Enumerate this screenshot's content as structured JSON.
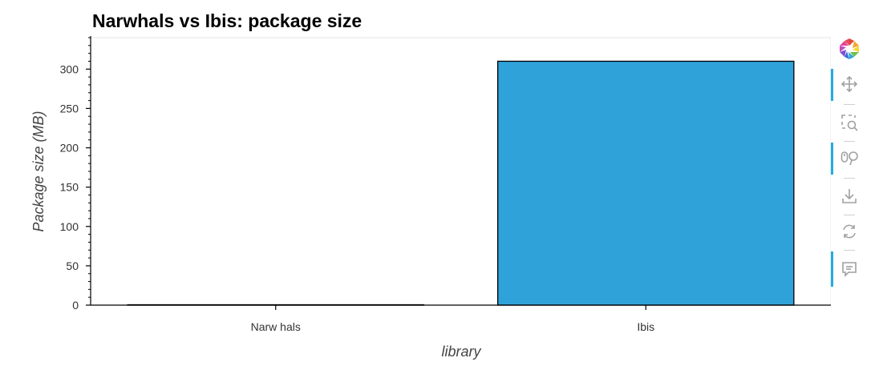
{
  "chart_data": {
    "type": "bar",
    "title": "Narwhals vs Ibis: package size",
    "xlabel": "library",
    "ylabel": "Package size (MB)",
    "categories": [
      "Narw hals",
      "Ibis"
    ],
    "values": [
      0.5,
      310
    ],
    "ylim": [
      0,
      340
    ],
    "yticks": [
      0,
      50,
      100,
      150,
      200,
      250,
      300
    ],
    "bar_color": "#30a2da",
    "bar_edge_color": "#000000",
    "grid": false
  },
  "toolbar": {
    "logo_icon": "bokeh-logo-icon",
    "tools": [
      {
        "name": "pan-tool",
        "icon": "pan-icon",
        "active": true
      },
      {
        "name": "box-zoom-tool",
        "icon": "box-zoom-icon",
        "active": false
      },
      {
        "name": "wheel-zoom-tool",
        "icon": "wheel-zoom-icon",
        "active": true
      },
      {
        "name": "save-tool",
        "icon": "save-icon",
        "active": false
      },
      {
        "name": "reset-tool",
        "icon": "reset-icon",
        "active": false
      },
      {
        "name": "hover-tool",
        "icon": "hover-icon",
        "active": true
      }
    ],
    "active_color": "#26aae1",
    "icon_color": "#a0a0a0"
  }
}
